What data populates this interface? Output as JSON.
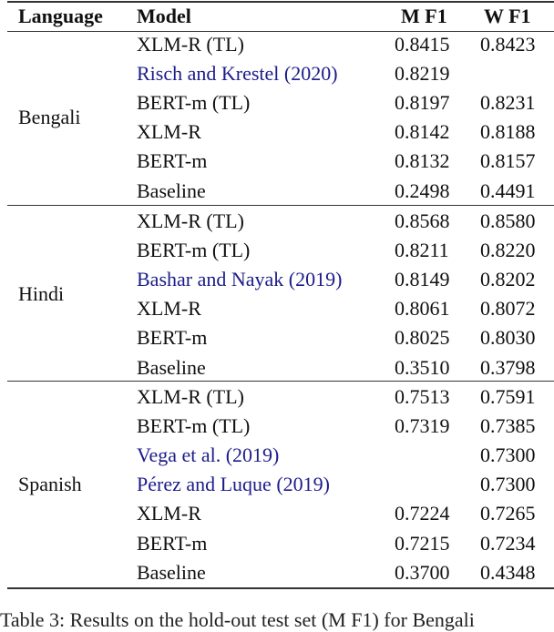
{
  "header": {
    "language": "Language",
    "model": "Model",
    "m_f1": "M F1",
    "w_f1": "W F1"
  },
  "groups": [
    {
      "language": "Bengali",
      "rows": [
        {
          "model": "XLM-R (TL)",
          "m_f1": "0.8415",
          "w_f1": "0.8423",
          "citation": false
        },
        {
          "model": "Risch and Krestel (2020)",
          "m_f1": "0.8219",
          "w_f1": "",
          "citation": true
        },
        {
          "model": "BERT-m (TL)",
          "m_f1": "0.8197",
          "w_f1": "0.8231",
          "citation": false
        },
        {
          "model": "XLM-R",
          "m_f1": "0.8142",
          "w_f1": "0.8188",
          "citation": false
        },
        {
          "model": "BERT-m",
          "m_f1": "0.8132",
          "w_f1": "0.8157",
          "citation": false
        },
        {
          "model": "Baseline",
          "m_f1": "0.2498",
          "w_f1": "0.4491",
          "citation": false
        }
      ]
    },
    {
      "language": "Hindi",
      "rows": [
        {
          "model": "XLM-R (TL)",
          "m_f1": "0.8568",
          "w_f1": "0.8580",
          "citation": false
        },
        {
          "model": "BERT-m (TL)",
          "m_f1": "0.8211",
          "w_f1": "0.8220",
          "citation": false
        },
        {
          "model": "Bashar and Nayak (2019)",
          "m_f1": "0.8149",
          "w_f1": "0.8202",
          "citation": true
        },
        {
          "model": "XLM-R",
          "m_f1": "0.8061",
          "w_f1": "0.8072",
          "citation": false
        },
        {
          "model": "BERT-m",
          "m_f1": "0.8025",
          "w_f1": "0.8030",
          "citation": false
        },
        {
          "model": "Baseline",
          "m_f1": "0.3510",
          "w_f1": "0.3798",
          "citation": false
        }
      ]
    },
    {
      "language": "Spanish",
      "rows": [
        {
          "model": "XLM-R (TL)",
          "m_f1": "0.7513",
          "w_f1": "0.7591",
          "citation": false
        },
        {
          "model": "BERT-m (TL)",
          "m_f1": "0.7319",
          "w_f1": "0.7385",
          "citation": false
        },
        {
          "model": "Vega et al. (2019)",
          "m_f1": "",
          "w_f1": "0.7300",
          "citation": true
        },
        {
          "model": "Pérez and Luque (2019)",
          "m_f1": "",
          "w_f1": "0.7300",
          "citation": true
        },
        {
          "model": "XLM-R",
          "m_f1": "0.7224",
          "w_f1": "0.7265",
          "citation": false
        },
        {
          "model": "BERT-m",
          "m_f1": "0.7215",
          "w_f1": "0.7234",
          "citation": false
        },
        {
          "model": "Baseline",
          "m_f1": "0.3700",
          "w_f1": "0.4348",
          "citation": false
        }
      ]
    }
  ],
  "caption": "Table 3: Results on the hold-out test set (M F1) for Bengali",
  "colors": {
    "citation": "#1c1c8a",
    "rule": "#333333"
  }
}
